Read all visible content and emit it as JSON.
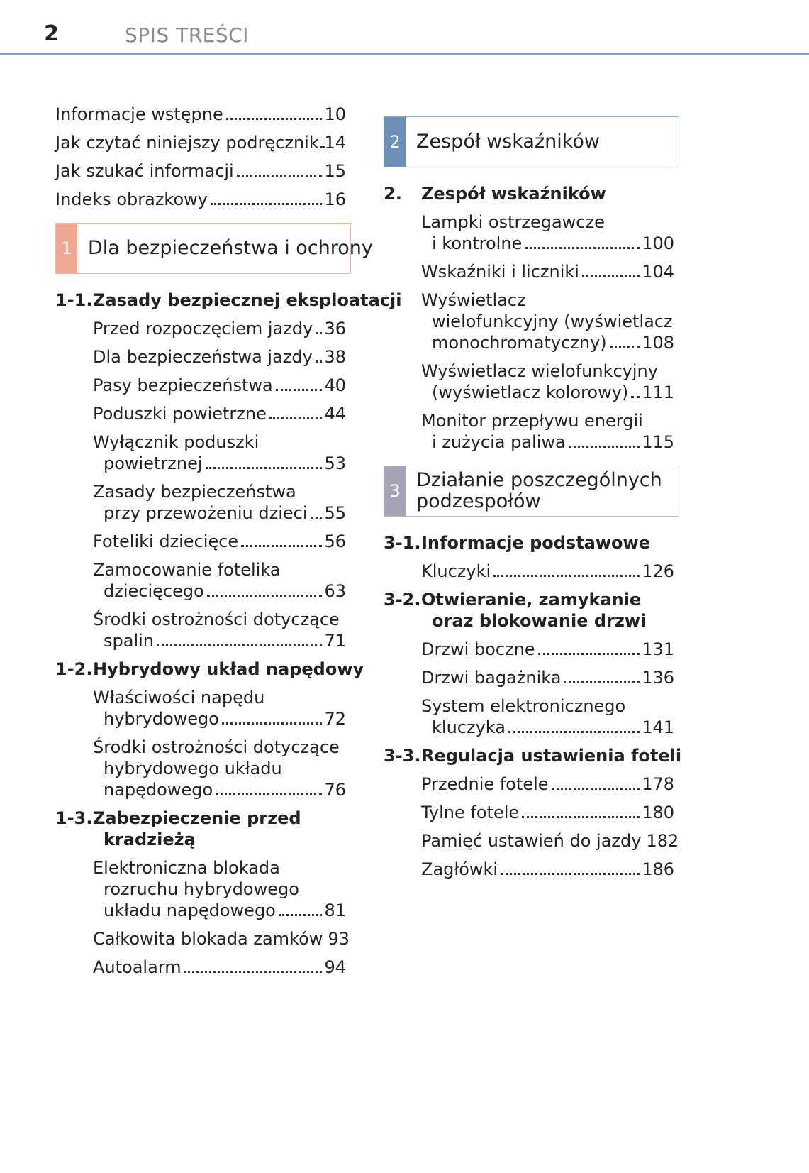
{
  "header": {
    "page_number": "2",
    "title": "SPIS TREŚCI"
  },
  "columns": [
    {
      "intro": [
        {
          "lines": [
            "Informacje wstępne"
          ],
          "page": 10
        },
        {
          "lines": [
            "Jak czytać niniejszy podręcznik"
          ],
          "page": 14
        },
        {
          "lines": [
            "Jak szukać informacji"
          ],
          "page": 15
        },
        {
          "lines": [
            "Indeks obrazkowy"
          ],
          "page": 16
        }
      ],
      "sections": [
        {
          "number": "1",
          "title": [
            "Dla bezpieczeństwa i ochrony"
          ],
          "groups": [
            {
              "number": "1-1.",
              "title": [
                "Zasady bezpiecznej eksploatacji"
              ],
              "entries": [
                {
                  "lines": [
                    "Przed rozpoczęciem jazdy"
                  ],
                  "page": 36
                },
                {
                  "lines": [
                    "Dla bezpieczeństwa jazdy"
                  ],
                  "page": 38
                },
                {
                  "lines": [
                    "Pasy bezpieczeństwa"
                  ],
                  "page": 40
                },
                {
                  "lines": [
                    "Poduszki powietrzne"
                  ],
                  "page": 44
                },
                {
                  "lines": [
                    "Wyłącznik poduszki",
                    "powietrznej"
                  ],
                  "page": 53
                },
                {
                  "lines": [
                    "Zasady bezpieczeństwa",
                    "przy przewożeniu dzieci"
                  ],
                  "page": 55
                },
                {
                  "lines": [
                    "Foteliki dziecięce"
                  ],
                  "page": 56
                },
                {
                  "lines": [
                    "Zamocowanie fotelika",
                    "dziecięcego"
                  ],
                  "page": 63
                },
                {
                  "lines": [
                    "Środki ostrożności dotyczące",
                    "spalin"
                  ],
                  "page": 71
                }
              ]
            },
            {
              "number": "1-2.",
              "title": [
                "Hybrydowy układ napędowy"
              ],
              "entries": [
                {
                  "lines": [
                    "Właściwości napędu",
                    "hybrydowego"
                  ],
                  "page": 72
                },
                {
                  "lines": [
                    "Środki ostrożności dotyczące",
                    "hybrydowego układu",
                    "napędowego"
                  ],
                  "page": 76
                }
              ]
            },
            {
              "number": "1-3.",
              "title": [
                "Zabezpieczenie przed",
                "kradzieżą"
              ],
              "entries": [
                {
                  "lines": [
                    "Elektroniczna blokada",
                    "rozruchu hybrydowego",
                    "układu napędowego"
                  ],
                  "page": 81
                },
                {
                  "lines": [
                    "Całkowita blokada zamków"
                  ],
                  "page": 93
                },
                {
                  "lines": [
                    "Autoalarm"
                  ],
                  "page": 94
                }
              ]
            }
          ]
        }
      ]
    },
    {
      "sections": [
        {
          "number": "2",
          "title": [
            "Zespół wskaźników"
          ],
          "groups": [
            {
              "number": "2.",
              "title": [
                "Zespół wskaźników"
              ],
              "entries": [
                {
                  "lines": [
                    "Lampki ostrzegawcze",
                    "i kontrolne"
                  ],
                  "page": 100
                },
                {
                  "lines": [
                    "Wskaźniki i liczniki"
                  ],
                  "page": 104
                },
                {
                  "lines": [
                    "Wyświetlacz",
                    "wielofunkcyjny (wyświetlacz",
                    "monochromatyczny)"
                  ],
                  "page": 108
                },
                {
                  "lines": [
                    "Wyświetlacz wielofunkcyjny",
                    "(wyświetlacz kolorowy)"
                  ],
                  "page": 111
                },
                {
                  "lines": [
                    "Monitor przepływu energii",
                    "i zużycia paliwa"
                  ],
                  "page": 115
                }
              ]
            }
          ]
        },
        {
          "number": "3",
          "title": [
            "Działanie poszczególnych",
            "podzespołów"
          ],
          "groups": [
            {
              "number": "3-1.",
              "title": [
                "Informacje podstawowe"
              ],
              "entries": [
                {
                  "lines": [
                    "Kluczyki"
                  ],
                  "page": 126
                }
              ]
            },
            {
              "number": "3-2.",
              "title": [
                "Otwieranie, zamykanie",
                "oraz blokowanie drzwi"
              ],
              "entries": [
                {
                  "lines": [
                    "Drzwi boczne"
                  ],
                  "page": 131
                },
                {
                  "lines": [
                    "Drzwi bagażnika"
                  ],
                  "page": 136
                },
                {
                  "lines": [
                    "System elektronicznego",
                    "kluczyka"
                  ],
                  "page": 141
                }
              ]
            },
            {
              "number": "3-3.",
              "title": [
                "Regulacja ustawienia foteli"
              ],
              "entries": [
                {
                  "lines": [
                    "Przednie fotele"
                  ],
                  "page": 178
                },
                {
                  "lines": [
                    "Tylne fotele"
                  ],
                  "page": 180
                },
                {
                  "lines": [
                    "Pamięć ustawień do jazdy"
                  ],
                  "page": 182
                },
                {
                  "lines": [
                    "Zagłówki"
                  ],
                  "page": 186
                }
              ]
            }
          ]
        }
      ]
    }
  ]
}
